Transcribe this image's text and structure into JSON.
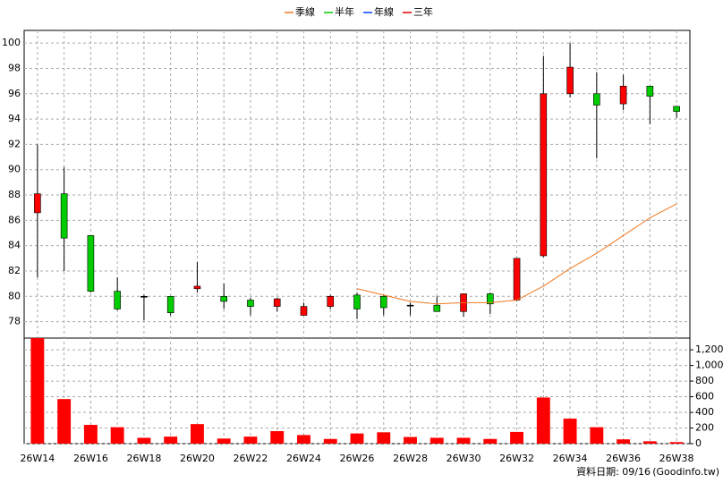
{
  "chart_data": {
    "type": "candlestick",
    "categories": [
      "26W14",
      null,
      "26W16",
      null,
      "26W18",
      null,
      "26W20",
      null,
      "26W22",
      null,
      "26W24",
      null,
      "26W26",
      null,
      "26W28",
      null,
      "26W30",
      null,
      "26W32",
      null,
      "26W34",
      null,
      "26W36",
      null,
      "26W38"
    ],
    "open": [
      86.6,
      88.1,
      84.8,
      80.4,
      80.0,
      80.0,
      80.6,
      80.0,
      79.7,
      79.2,
      78.5,
      79.2,
      80.1,
      80.0,
      79.3,
      79.3,
      78.8,
      80.2,
      79.7,
      83.2,
      96.0,
      96.0,
      95.2,
      96.6,
      95.0
    ],
    "high": [
      92.0,
      90.2,
      84.8,
      81.5,
      80.1,
      80.0,
      82.7,
      81.0,
      79.9,
      79.9,
      79.5,
      80.1,
      80.3,
      80.1,
      79.5,
      80.0,
      80.2,
      80.3,
      83.0,
      99.0,
      100.0,
      97.7,
      97.5,
      96.6,
      95.0
    ],
    "low": [
      81.5,
      82.0,
      80.3,
      78.9,
      78.1,
      78.5,
      80.3,
      79.0,
      78.5,
      78.8,
      78.5,
      79.0,
      78.2,
      78.5,
      78.5,
      78.8,
      78.4,
      78.6,
      79.6,
      83.1,
      95.7,
      90.9,
      94.7,
      93.6,
      94.1
    ],
    "close": [
      88.1,
      84.6,
      80.4,
      79.0,
      80.0,
      78.7,
      80.8,
      79.6,
      79.2,
      79.8,
      79.2,
      80.0,
      79.0,
      79.1,
      79.3,
      78.8,
      80.2,
      79.4,
      83.0,
      96.0,
      98.1,
      95.1,
      96.6,
      95.8,
      94.6
    ],
    "up_color": "#ff0000",
    "down_color": "#00cc00",
    "series": [
      {
        "name": "季線",
        "color": "#f07820",
        "values": [
          null,
          null,
          null,
          null,
          null,
          null,
          null,
          null,
          null,
          null,
          null,
          null,
          80.6,
          80.1,
          79.6,
          79.4,
          79.5,
          79.5,
          79.7,
          80.8,
          82.2,
          83.4,
          84.8,
          86.2,
          87.3
        ]
      },
      {
        "name": "半年",
        "color": "#00cc00",
        "values": [
          null,
          null,
          null,
          null,
          null,
          null,
          null,
          null,
          null,
          null,
          null,
          null,
          null,
          null,
          null,
          null,
          null,
          null,
          null,
          null,
          null,
          null,
          null,
          null,
          null
        ]
      },
      {
        "name": "年線",
        "color": "#0040ff",
        "values": [
          null,
          null,
          null,
          null,
          null,
          null,
          null,
          null,
          null,
          null,
          null,
          null,
          null,
          null,
          null,
          null,
          null,
          null,
          null,
          null,
          null,
          null,
          null,
          null,
          null
        ]
      },
      {
        "name": "三年",
        "color": "#e00000",
        "values": [
          null,
          null,
          null,
          null,
          null,
          null,
          null,
          null,
          null,
          null,
          null,
          null,
          null,
          null,
          null,
          null,
          null,
          null,
          null,
          null,
          null,
          null,
          null,
          null,
          null
        ]
      }
    ],
    "ylim": [
      76.7,
      101
    ],
    "yticks": [
      78,
      80,
      82,
      84,
      86,
      88,
      90,
      92,
      94,
      96,
      98,
      100
    ],
    "volume": {
      "color": "#ff0000",
      "values": [
        1350,
        570,
        240,
        210,
        75,
        90,
        250,
        65,
        90,
        160,
        110,
        60,
        130,
        145,
        85,
        75,
        75,
        60,
        150,
        590,
        320,
        210,
        55,
        30,
        20
      ],
      "y2lim": [
        0,
        1350
      ],
      "y2ticks": [
        0,
        200,
        400,
        600,
        800,
        {
          "value": 1000,
          "label": "1,000"
        },
        {
          "value": 1200,
          "label": "1,200"
        }
      ]
    },
    "grid": true,
    "legend": "top",
    "note": "資料日期: 09/16",
    "source": "(Goodinfo.tw)"
  }
}
